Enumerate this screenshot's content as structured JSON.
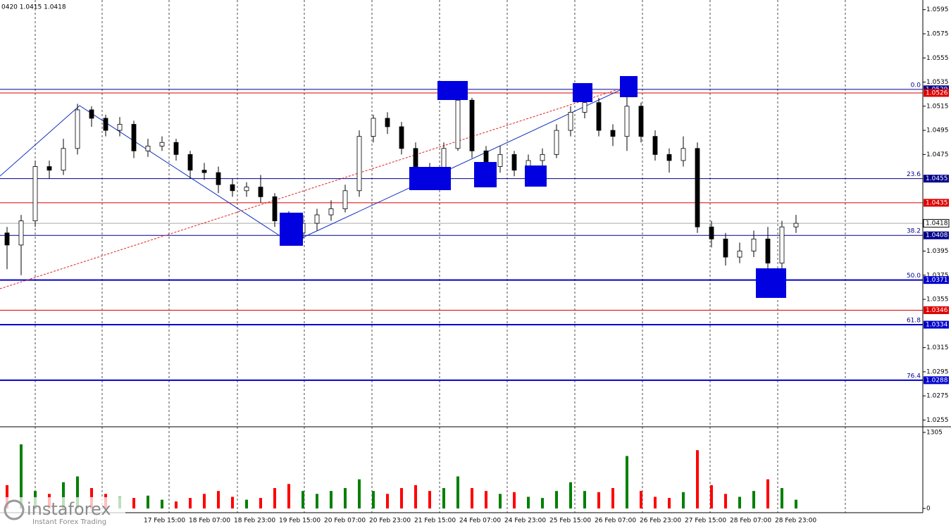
{
  "chart_data": {
    "type": "candlestick",
    "header": "0420 1.0415 1.0418",
    "open": [
      1.041,
      1.04,
      1.042,
      1.0465,
      1.0462,
      1.048,
      1.0512,
      1.0505,
      1.0495,
      1.05,
      1.0478,
      1.0482,
      1.0485,
      1.0475,
      1.0462,
      1.046,
      1.045,
      1.0445,
      1.0448,
      1.044,
      1.042,
      1.041,
      1.0418,
      1.0425,
      1.043,
      1.0445,
      1.049,
      1.0505,
      1.0498,
      1.048,
      1.046,
      1.0458,
      1.048,
      1.052,
      1.0478,
      1.0465,
      1.0475,
      1.0462,
      1.047,
      1.0475,
      1.0495,
      1.051,
      1.0518,
      1.0495,
      1.049,
      1.0515,
      1.049,
      1.0475,
      1.047,
      1.048,
      1.0415,
      1.0405,
      1.039,
      1.0395,
      1.0405,
      1.0385,
      1.0415
    ],
    "high": [
      1.0415,
      1.0425,
      1.047,
      1.047,
      1.0488,
      1.0517,
      1.0515,
      1.0508,
      1.0506,
      1.0503,
      1.0488,
      1.049,
      1.0488,
      1.0478,
      1.0468,
      1.0465,
      1.0455,
      1.0452,
      1.0458,
      1.0443,
      1.0428,
      1.0425,
      1.043,
      1.0437,
      1.045,
      1.0495,
      1.0508,
      1.051,
      1.0502,
      1.0485,
      1.0468,
      1.0485,
      1.0528,
      1.0522,
      1.0482,
      1.0482,
      1.0478,
      1.0475,
      1.048,
      1.05,
      1.0515,
      1.0525,
      1.0522,
      1.05,
      1.0525,
      1.0518,
      1.0495,
      1.048,
      1.049,
      1.0485,
      1.042,
      1.041,
      1.0402,
      1.0412,
      1.0415,
      1.042,
      1.0425
    ],
    "low": [
      1.038,
      1.0375,
      1.0415,
      1.0455,
      1.0458,
      1.0475,
      1.0498,
      1.049,
      1.049,
      1.0472,
      1.0473,
      1.0478,
      1.047,
      1.0455,
      1.0454,
      1.0443,
      1.044,
      1.044,
      1.0435,
      1.0415,
      1.0402,
      1.0405,
      1.0412,
      1.042,
      1.0427,
      1.044,
      1.0485,
      1.0492,
      1.0475,
      1.0452,
      1.045,
      1.0455,
      1.0478,
      1.0472,
      1.0458,
      1.046,
      1.0457,
      1.0455,
      1.0465,
      1.0472,
      1.049,
      1.0505,
      1.049,
      1.0482,
      1.0478,
      1.0485,
      1.047,
      1.046,
      1.0465,
      1.041,
      1.0398,
      1.0383,
      1.0385,
      1.039,
      1.0365,
      1.0368,
      1.041
    ],
    "close": [
      1.04,
      1.042,
      1.0465,
      1.0462,
      1.048,
      1.0512,
      1.0505,
      1.0495,
      1.05,
      1.0478,
      1.0482,
      1.0485,
      1.0475,
      1.0462,
      1.046,
      1.045,
      1.0445,
      1.0448,
      1.044,
      1.042,
      1.041,
      1.0418,
      1.0425,
      1.043,
      1.0445,
      1.049,
      1.0505,
      1.0498,
      1.048,
      1.046,
      1.0458,
      1.048,
      1.052,
      1.0478,
      1.0465,
      1.0475,
      1.0462,
      1.047,
      1.0475,
      1.0495,
      1.051,
      1.0518,
      1.0495,
      1.049,
      1.0515,
      1.049,
      1.0475,
      1.047,
      1.048,
      1.0415,
      1.0405,
      1.039,
      1.0395,
      1.0405,
      1.0385,
      1.0415,
      1.0418
    ],
    "volume": [
      400,
      1100,
      300,
      250,
      450,
      550,
      350,
      250,
      200,
      180,
      220,
      150,
      120,
      180,
      250,
      300,
      200,
      150,
      180,
      350,
      420,
      300,
      250,
      300,
      350,
      500,
      300,
      250,
      350,
      400,
      300,
      350,
      550,
      350,
      300,
      250,
      280,
      200,
      180,
      300,
      450,
      300,
      280,
      350,
      900,
      300,
      200,
      180,
      280,
      1000,
      400,
      250,
      200,
      300,
      500,
      350,
      150
    ],
    "up_color": "#ffffff",
    "down_color": "#000000",
    "volume_up_color": "#008000",
    "volume_down_color": "#ff0000",
    "x_labels": [
      "17 Feb 15:00",
      "18 Feb 07:00",
      "18 Feb 23:00",
      "19 Feb 15:00",
      "20 Feb 07:00",
      "20 Feb 23:00",
      "21 Feb 15:00",
      "24 Feb 07:00",
      "24 Feb 23:00",
      "25 Feb 15:00",
      "26 Feb 07:00",
      "26 Feb 23:00",
      "27 Feb 15:00",
      "28 Feb 07:00",
      "28 Feb 23:00"
    ],
    "ylim": [
      1.025,
      1.0603
    ],
    "yticks": [
      1.0595,
      1.0575,
      1.0555,
      1.0535,
      1.0515,
      1.0495,
      1.0475,
      1.0395,
      1.0375,
      1.0355,
      1.0315,
      1.0295,
      1.0275,
      1.0255
    ],
    "volume_ylim": [
      0,
      1305
    ],
    "volume_yticks": [
      1305,
      0
    ],
    "levels": [
      {
        "value": 1.0529,
        "fib": "0.0",
        "color": "#00008b"
      },
      {
        "value": 1.0526,
        "color": "#dd0000"
      },
      {
        "value": 1.0455,
        "fib": "23.6",
        "color": "#00008b"
      },
      {
        "value": 1.0435,
        "color": "#dd0000"
      },
      {
        "value": 1.0418,
        "color": "#aaaaaa"
      },
      {
        "value": 1.0408,
        "fib": "38.2",
        "color": "#00008b"
      },
      {
        "value": 1.0371,
        "fib": "50.0",
        "color": "#0000cc"
      },
      {
        "value": 1.0346,
        "color": "#dd0000"
      },
      {
        "value": 1.0334,
        "fib": "61.8",
        "color": "#0000cc"
      },
      {
        "value": 1.0288,
        "fib": "76.4",
        "color": "#0000cc"
      }
    ],
    "logo": "instaforex",
    "logo_sub": "Instant Forex Trading"
  }
}
